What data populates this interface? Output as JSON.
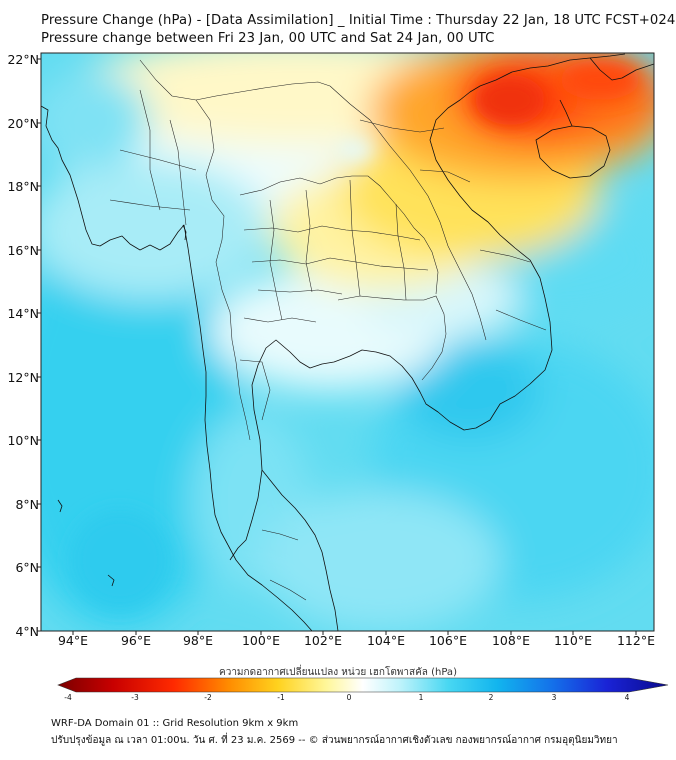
{
  "header": {
    "title": "Pressure Change (hPa) - [Data Assimilation] _ Initial Time : Thursday 22 Jan, 18 UTC FCST+024",
    "subtitle": "Pressure change between Fri 23 Jan, 00 UTC and Sat 24 Jan, 00 UTC"
  },
  "map": {
    "lat_labels": [
      "22°N",
      "20°N",
      "18°N",
      "16°N",
      "14°N",
      "12°N",
      "10°N",
      "8°N",
      "6°N",
      "4°N"
    ],
    "lon_labels": [
      "94°E",
      "96°E",
      "98°E",
      "100°E",
      "102°E",
      "104°E",
      "106°E",
      "108°E",
      "110°E",
      "112°E"
    ],
    "extent": {
      "lat_min": 4,
      "lat_max": 22.2,
      "lon_min": 93,
      "lon_max": 112.6
    },
    "colors": {
      "positive_max": "#1a23d6",
      "positive_mid": "#3cd5f0",
      "near_zero": "#ffffff",
      "negative_mid": "#f6e23a",
      "negative_max": "#8b0000"
    }
  },
  "colorbar": {
    "title": "ความกดอากาศเปลี่ยนแปลง หน่วย เฮกโตพาสคัล (hPa)",
    "range": [
      -4,
      4
    ],
    "ticks": [
      "-4",
      "-3",
      "-2",
      "-1",
      "0",
      "1",
      "2",
      "3",
      "4"
    ]
  },
  "footer": {
    "line1": "WRF-DA Domain 01 :: Grid Resolution 9km x 9km",
    "line2": "ปรับปรุงข้อมูล ณ เวลา 01:00น. วัน ศ. ที่ 23 ม.ค. 2569 -- © ส่วนพยากรณ์อากาศเชิงตัวเลข กองพยากรณ์อากาศ กรมอุตุนิยมวิทยา"
  }
}
